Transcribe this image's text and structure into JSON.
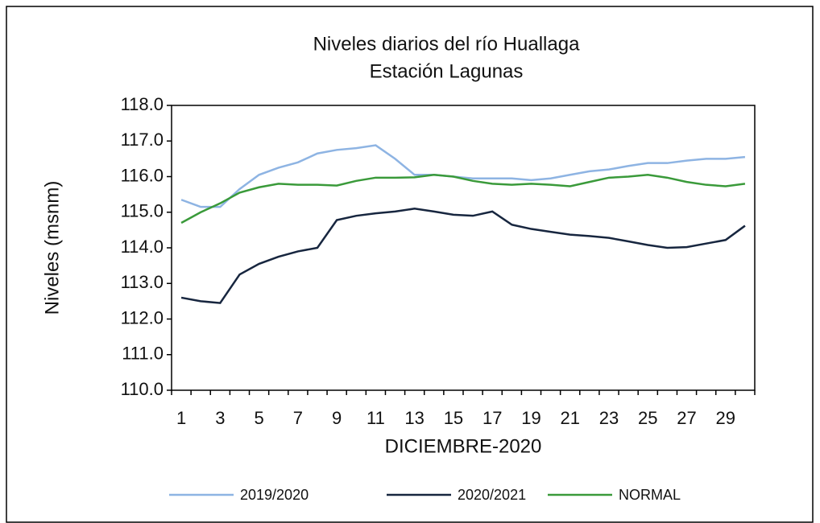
{
  "chart_data": {
    "type": "line",
    "title": [
      "Niveles  diarios del río Huallaga",
      "Estación Lagunas"
    ],
    "xlabel": "DICIEMBRE-2020",
    "ylabel": "Niveles  (msnm)",
    "categories": [
      "1",
      null,
      "3",
      null,
      "5",
      null,
      "7",
      null,
      "9",
      null,
      "11",
      null,
      "13",
      null,
      "15",
      null,
      "17",
      null,
      "19",
      null,
      "21",
      null,
      "23",
      null,
      "25",
      null,
      "27",
      null,
      "29",
      null
    ],
    "series": [
      {
        "name": "2019/2020",
        "color": "#8eb4e3",
        "values": [
          115.35,
          115.15,
          115.15,
          115.65,
          116.05,
          116.25,
          116.4,
          116.65,
          116.75,
          116.8,
          116.88,
          116.5,
          116.05,
          116.05,
          116.0,
          115.95,
          115.95,
          115.95,
          115.9,
          115.95,
          116.05,
          116.15,
          116.2,
          116.3,
          116.38,
          116.38,
          116.45,
          116.5,
          116.5,
          116.55
        ]
      },
      {
        "name": "2020/2021",
        "color": "#17263f",
        "values": [
          112.6,
          112.5,
          112.45,
          113.25,
          113.55,
          113.75,
          113.9,
          114.0,
          114.78,
          114.9,
          114.97,
          115.02,
          115.1,
          115.02,
          114.93,
          114.9,
          115.02,
          114.65,
          114.53,
          114.45,
          114.37,
          114.33,
          114.28,
          114.18,
          114.08,
          114.0,
          114.02,
          114.12,
          114.22,
          114.62
        ]
      },
      {
        "name": "NORMAL",
        "color": "#3a9a3a",
        "values": [
          114.7,
          115.0,
          115.25,
          115.55,
          115.7,
          115.8,
          115.77,
          115.77,
          115.75,
          115.88,
          115.97,
          115.97,
          115.98,
          116.05,
          116.0,
          115.88,
          115.8,
          115.77,
          115.8,
          115.77,
          115.73,
          115.85,
          115.97,
          116.0,
          116.05,
          115.97,
          115.85,
          115.77,
          115.73,
          115.8
        ]
      }
    ],
    "ylim": [
      110,
      118
    ],
    "yticks": [
      {
        "value": 110,
        "label": "110.0"
      },
      {
        "value": 111,
        "label": "111.0"
      },
      {
        "value": 112,
        "label": "112.0"
      },
      {
        "value": 113,
        "label": "113.0"
      },
      {
        "value": 114,
        "label": "114.0"
      },
      {
        "value": 115,
        "label": "115.0"
      },
      {
        "value": 116,
        "label": "116.0"
      },
      {
        "value": 117,
        "label": "117.0"
      },
      {
        "value": 118,
        "label": "118.0"
      }
    ],
    "legend": "bottom"
  }
}
